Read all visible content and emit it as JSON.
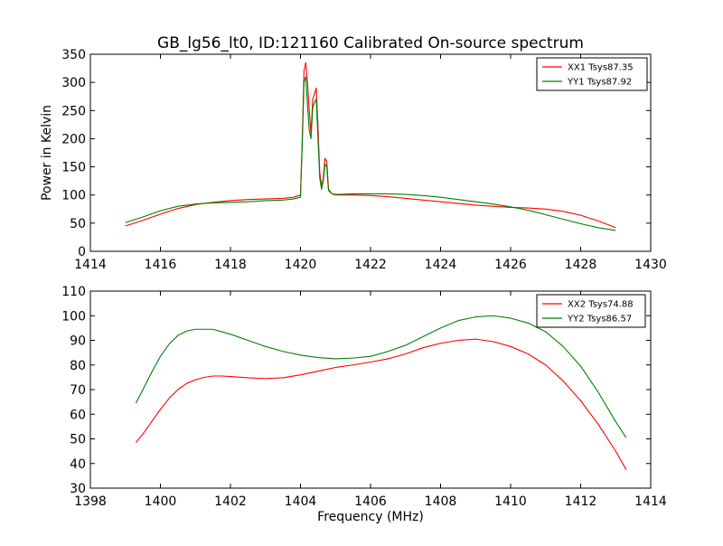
{
  "chart_data": {
    "title": "GB_lg56_lt0, ID:121160 Calibrated On-source spectrum",
    "charts": [
      {
        "type": "line",
        "xlim": [
          1414,
          1430
        ],
        "ylim": [
          0,
          350
        ],
        "xticks": [
          1414,
          1416,
          1418,
          1420,
          1422,
          1424,
          1426,
          1428,
          1430
        ],
        "yticks": [
          0,
          50,
          100,
          150,
          200,
          250,
          300,
          350
        ],
        "xlabel": "",
        "ylabel": "Power in Kelvin",
        "grid": false,
        "legend": "top-right",
        "series": [
          {
            "name": "XX1 Tsys87.35",
            "color": "#ff0000",
            "points": [
              [
                1415.0,
                45
              ],
              [
                1415.5,
                55
              ],
              [
                1416.0,
                66
              ],
              [
                1416.5,
                76
              ],
              [
                1417.0,
                83
              ],
              [
                1417.5,
                87
              ],
              [
                1418.0,
                90
              ],
              [
                1418.5,
                92
              ],
              [
                1419.0,
                93
              ],
              [
                1419.5,
                94
              ],
              [
                1419.8,
                96
              ],
              [
                1420.0,
                100
              ],
              [
                1420.05,
                200
              ],
              [
                1420.1,
                320
              ],
              [
                1420.15,
                335
              ],
              [
                1420.2,
                300
              ],
              [
                1420.25,
                250
              ],
              [
                1420.3,
                210
              ],
              [
                1420.35,
                270
              ],
              [
                1420.4,
                280
              ],
              [
                1420.45,
                290
              ],
              [
                1420.5,
                220
              ],
              [
                1420.55,
                140
              ],
              [
                1420.6,
                115
              ],
              [
                1420.65,
                130
              ],
              [
                1420.7,
                165
              ],
              [
                1420.75,
                160
              ],
              [
                1420.8,
                110
              ],
              [
                1420.9,
                102
              ],
              [
                1421.0,
                100
              ],
              [
                1421.5,
                100
              ],
              [
                1422.0,
                99
              ],
              [
                1422.5,
                97
              ],
              [
                1423.0,
                94
              ],
              [
                1423.5,
                91
              ],
              [
                1424.0,
                88
              ],
              [
                1424.5,
                85
              ],
              [
                1425.0,
                82
              ],
              [
                1425.5,
                80
              ],
              [
                1426.0,
                78
              ],
              [
                1426.5,
                77
              ],
              [
                1427.0,
                75
              ],
              [
                1427.5,
                71
              ],
              [
                1428.0,
                64
              ],
              [
                1428.5,
                54
              ],
              [
                1429.0,
                42
              ]
            ]
          },
          {
            "name": "YY1 Tsys87.92",
            "color": "#008000",
            "points": [
              [
                1415.0,
                51
              ],
              [
                1415.5,
                61
              ],
              [
                1416.0,
                72
              ],
              [
                1416.5,
                80
              ],
              [
                1417.0,
                84
              ],
              [
                1417.5,
                86
              ],
              [
                1418.0,
                87
              ],
              [
                1418.5,
                88
              ],
              [
                1419.0,
                90
              ],
              [
                1419.5,
                91
              ],
              [
                1419.8,
                93
              ],
              [
                1420.0,
                96
              ],
              [
                1420.05,
                190
              ],
              [
                1420.1,
                300
              ],
              [
                1420.15,
                310
              ],
              [
                1420.2,
                260
              ],
              [
                1420.25,
                215
              ],
              [
                1420.3,
                200
              ],
              [
                1420.35,
                255
              ],
              [
                1420.4,
                265
              ],
              [
                1420.45,
                270
              ],
              [
                1420.5,
                200
              ],
              [
                1420.55,
                130
              ],
              [
                1420.6,
                110
              ],
              [
                1420.65,
                125
              ],
              [
                1420.7,
                155
              ],
              [
                1420.75,
                150
              ],
              [
                1420.8,
                108
              ],
              [
                1420.9,
                102
              ],
              [
                1421.0,
                101
              ],
              [
                1421.5,
                102
              ],
              [
                1422.0,
                102
              ],
              [
                1422.5,
                102
              ],
              [
                1423.0,
                101
              ],
              [
                1423.5,
                99
              ],
              [
                1424.0,
                96
              ],
              [
                1424.5,
                92
              ],
              [
                1425.0,
                88
              ],
              [
                1425.5,
                84
              ],
              [
                1426.0,
                79
              ],
              [
                1426.5,
                73
              ],
              [
                1427.0,
                65
              ],
              [
                1427.5,
                57
              ],
              [
                1428.0,
                49
              ],
              [
                1428.5,
                42
              ],
              [
                1429.0,
                37
              ]
            ]
          }
        ]
      },
      {
        "type": "line",
        "xlim": [
          1398,
          1414
        ],
        "ylim": [
          30,
          110
        ],
        "xticks": [
          1398,
          1400,
          1402,
          1404,
          1406,
          1408,
          1410,
          1412,
          1414
        ],
        "yticks": [
          30,
          40,
          50,
          60,
          70,
          80,
          90,
          100,
          110
        ],
        "xlabel": "Frequency (MHz)",
        "ylabel": "",
        "grid": false,
        "legend": "top-right",
        "series": [
          {
            "name": "XX2 Tsys74.88",
            "color": "#ff0000",
            "points": [
              [
                1399.3,
                48.5
              ],
              [
                1399.5,
                52
              ],
              [
                1399.75,
                57
              ],
              [
                1400.0,
                62
              ],
              [
                1400.25,
                66.5
              ],
              [
                1400.5,
                70
              ],
              [
                1400.75,
                72.5
              ],
              [
                1401.0,
                74
              ],
              [
                1401.25,
                75
              ],
              [
                1401.5,
                75.5
              ],
              [
                1401.75,
                75.5
              ],
              [
                1402.0,
                75.3
              ],
              [
                1402.5,
                74.8
              ],
              [
                1403.0,
                74.5
              ],
              [
                1403.5,
                74.8
              ],
              [
                1404.0,
                76
              ],
              [
                1404.5,
                77.5
              ],
              [
                1405.0,
                79
              ],
              [
                1405.5,
                80
              ],
              [
                1406.0,
                81.2
              ],
              [
                1406.5,
                82.5
              ],
              [
                1407.0,
                84.5
              ],
              [
                1407.5,
                87
              ],
              [
                1408.0,
                88.8
              ],
              [
                1408.5,
                90
              ],
              [
                1409.0,
                90.5
              ],
              [
                1409.5,
                89.5
              ],
              [
                1410.0,
                87.5
              ],
              [
                1410.5,
                84.5
              ],
              [
                1411.0,
                80
              ],
              [
                1411.5,
                73.5
              ],
              [
                1412.0,
                65.5
              ],
              [
                1412.5,
                56
              ],
              [
                1413.0,
                45
              ],
              [
                1413.3,
                37.5
              ]
            ]
          },
          {
            "name": "YY2 Tsys86.57",
            "color": "#008000",
            "points": [
              [
                1399.3,
                64.5
              ],
              [
                1399.5,
                70
              ],
              [
                1399.75,
                77
              ],
              [
                1400.0,
                83.5
              ],
              [
                1400.25,
                88.5
              ],
              [
                1400.5,
                92
              ],
              [
                1400.75,
                93.8
              ],
              [
                1401.0,
                94.5
              ],
              [
                1401.5,
                94.5
              ],
              [
                1402.0,
                92.5
              ],
              [
                1402.5,
                90
              ],
              [
                1403.0,
                87.5
              ],
              [
                1403.5,
                85.5
              ],
              [
                1404.0,
                84
              ],
              [
                1404.5,
                83
              ],
              [
                1405.0,
                82.5
              ],
              [
                1405.5,
                82.8
              ],
              [
                1406.0,
                83.5
              ],
              [
                1406.5,
                85.5
              ],
              [
                1407.0,
                88
              ],
              [
                1407.5,
                91.5
              ],
              [
                1408.0,
                95
              ],
              [
                1408.5,
                98
              ],
              [
                1409.0,
                99.5
              ],
              [
                1409.5,
                100
              ],
              [
                1410.0,
                99
              ],
              [
                1410.5,
                97
              ],
              [
                1411.0,
                93.5
              ],
              [
                1411.5,
                87.5
              ],
              [
                1412.0,
                79.5
              ],
              [
                1412.5,
                69
              ],
              [
                1413.0,
                57
              ],
              [
                1413.3,
                50.5
              ]
            ]
          }
        ]
      }
    ]
  }
}
